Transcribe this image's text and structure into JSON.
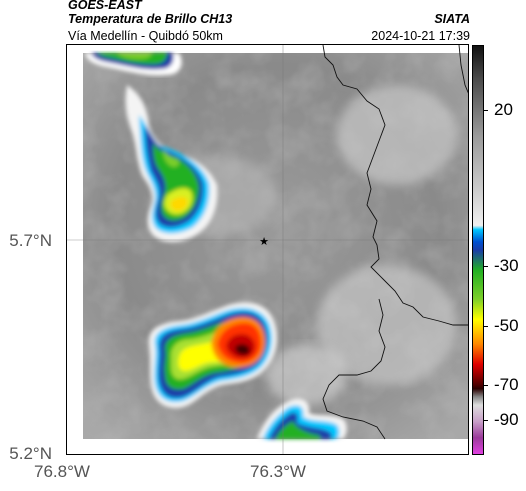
{
  "header": {
    "satellite": "GOES-EAST",
    "product": "Temperatura de Brillo CH13",
    "route": "Vía Medellín - Quibdó 50km",
    "agency": "SIATA",
    "timestamp": "2024-10-21 17:39"
  },
  "map": {
    "y_axis_labels": [
      "5.7°N",
      "5.2°N"
    ],
    "x_axis_labels": [
      "76.8°W",
      "76.3°W"
    ],
    "marker_icon": "star-icon",
    "grid": true
  },
  "colorbar": {
    "tick_labels": [
      "20",
      "-30",
      "-50",
      "-70",
      "-90"
    ],
    "colors": {
      "top": "#111111",
      "gray_mid": "#9a9a9a",
      "light": "#f0f0f0",
      "cyan": "#00c8ff",
      "blue": "#1a3ca8",
      "green": "#22b022",
      "yellow": "#ffff00",
      "orange": "#ff8800",
      "red": "#e00000",
      "darkred": "#500000",
      "purple": "#9a3a9a",
      "magenta": "#e040e0"
    }
  }
}
